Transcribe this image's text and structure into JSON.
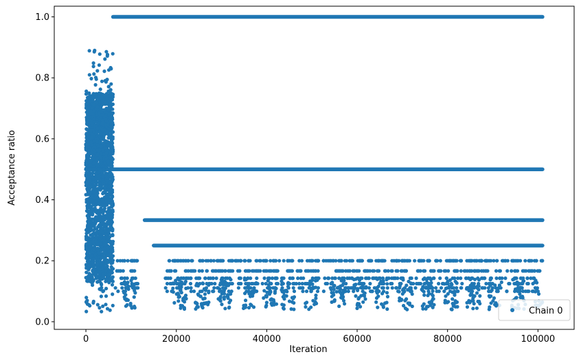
{
  "chart_data": {
    "type": "scatter",
    "title": "",
    "xlabel": "Iteration",
    "ylabel": "Acceptance ratio",
    "xlim": [
      -7000,
      108000
    ],
    "ylim": [
      -0.025,
      1.035
    ],
    "xticks": [
      0,
      20000,
      40000,
      60000,
      80000,
      100000
    ],
    "xtick_labels": [
      "0",
      "20000",
      "40000",
      "60000",
      "80000",
      "100000"
    ],
    "yticks": [
      0.0,
      0.2,
      0.4,
      0.6,
      0.8,
      1.0
    ],
    "ytick_labels": [
      "0.0",
      "0.2",
      "0.4",
      "0.6",
      "0.8",
      "1.0"
    ],
    "grid": false,
    "legend_position": "bottom-right",
    "series": [
      {
        "name": "Chain 0",
        "color": "#1f77b4",
        "marker": "circle",
        "x_range": [
          0,
          101000
        ],
        "burn_in_end": 6000,
        "levels": [
          1.0,
          0.5,
          0.3333,
          0.25,
          0.2,
          0.1667,
          0.1429,
          0.125,
          0.1111,
          0.1
        ],
        "burn_in_range": [
          0.02,
          0.89
        ]
      }
    ]
  }
}
